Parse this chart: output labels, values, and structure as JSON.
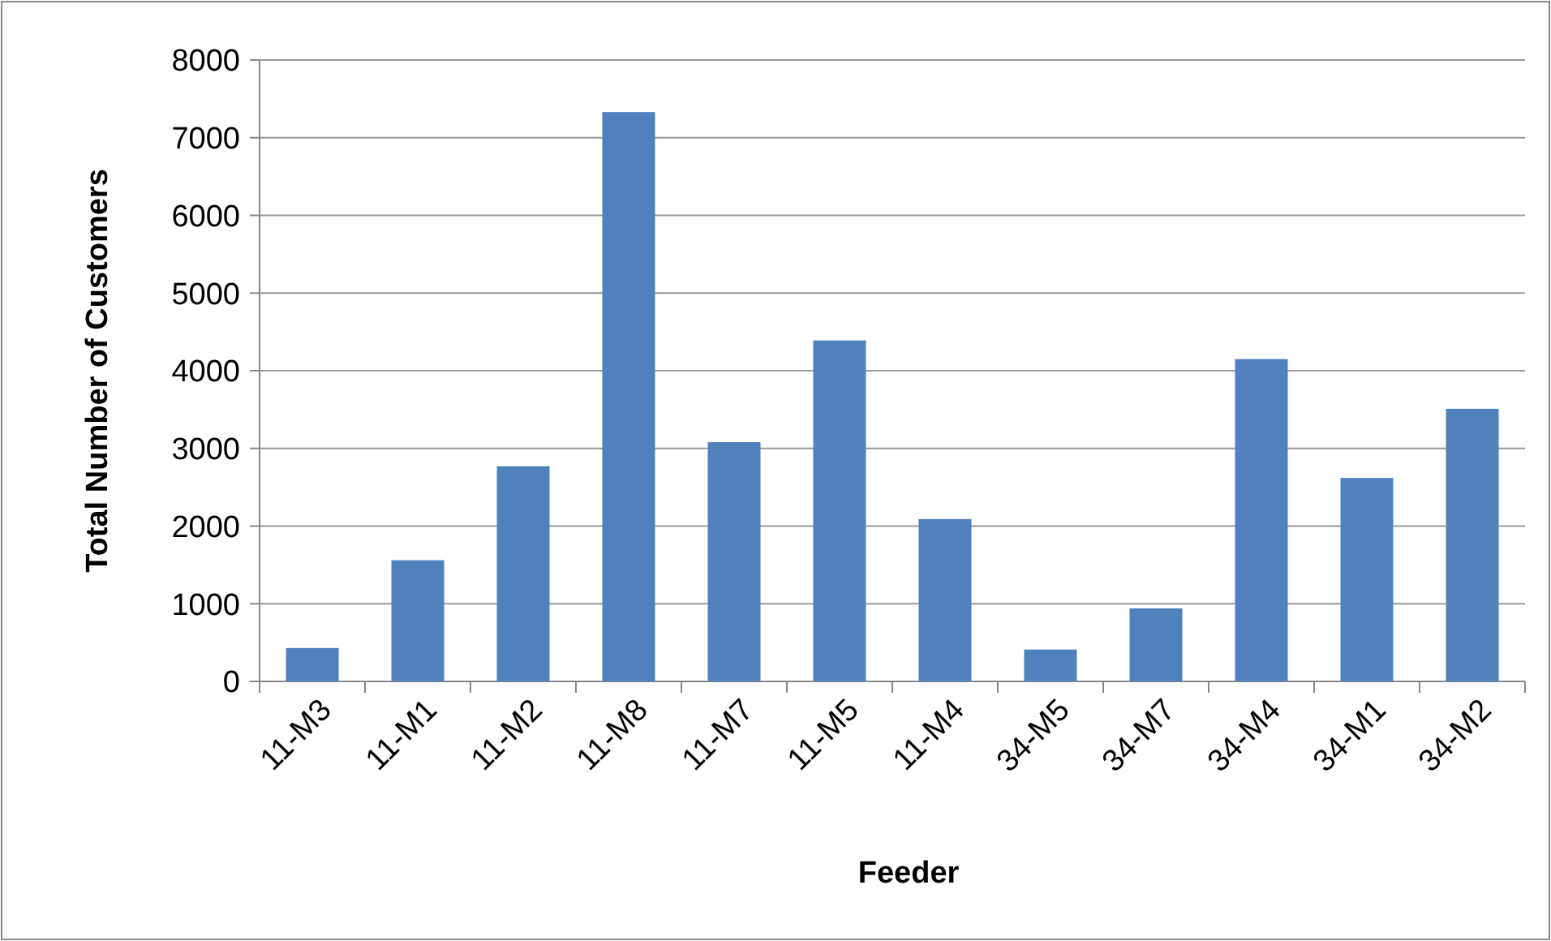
{
  "chart_data": {
    "type": "bar",
    "xlabel": "Feeder",
    "ylabel": "Total Number of Customers",
    "categories": [
      "11-M3",
      "11-M1",
      "11-M2",
      "11-M8",
      "11-M7",
      "11-M5",
      "11-M4",
      "34-M5",
      "34-M7",
      "34-M4",
      "34-M1",
      "34-M2"
    ],
    "values": [
      430,
      1560,
      2770,
      7330,
      3080,
      4390,
      2090,
      410,
      940,
      4150,
      2620,
      3510
    ],
    "color": "#4f81bd",
    "ylim": [
      0,
      8000
    ],
    "yticks": [
      0,
      1000,
      2000,
      3000,
      4000,
      5000,
      6000,
      7000,
      8000
    ],
    "grid": "y"
  }
}
